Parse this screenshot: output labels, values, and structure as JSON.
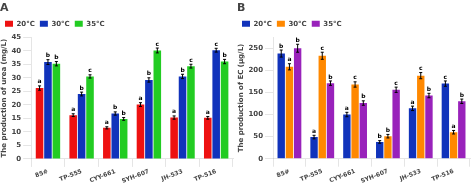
{
  "chart_data": [
    {
      "type": "bar",
      "title": "A",
      "ylabel": "The production of urea (mg/L)",
      "categories": [
        "85#",
        "TP-555",
        "CYY-661",
        "SYH-607",
        "JH-533",
        "TP-516"
      ],
      "series": [
        {
          "name": "20°C",
          "color": "#ee1111",
          "values": [
            26.2,
            16.2,
            11.5,
            20.1,
            15.3,
            15.2
          ],
          "errors": [
            0.8,
            0.5,
            0.4,
            0.7,
            0.6,
            0.5
          ],
          "annotations": [
            "a",
            "a",
            "a",
            "a",
            "a",
            "a"
          ]
        },
        {
          "name": "30°C",
          "color": "#1133bb",
          "values": [
            35.8,
            24.0,
            16.8,
            29.2,
            30.5,
            40.2
          ],
          "errors": [
            0.9,
            0.7,
            0.6,
            0.8,
            0.8,
            0.7
          ],
          "annotations": [
            "b",
            "b",
            "b",
            "b",
            "b",
            "c"
          ]
        },
        {
          "name": "35°C",
          "color": "#22cc22",
          "values": [
            35.2,
            30.5,
            14.8,
            40.1,
            34.3,
            36.0
          ],
          "errors": [
            0.8,
            0.6,
            0.5,
            0.9,
            0.7,
            0.8
          ],
          "annotations": [
            "b",
            "c",
            "b",
            "c",
            "c",
            "b"
          ]
        }
      ],
      "ylim": [
        0,
        45
      ],
      "yticks": [
        0,
        5,
        10,
        15,
        20,
        25,
        30,
        35,
        40,
        45
      ],
      "grid": false,
      "legend": "upper left"
    },
    {
      "type": "bar",
      "title": "B",
      "ylabel": "The production of EC (μg/L)",
      "categories": [
        "85#",
        "TP-555",
        "CYY-661",
        "SYH-607",
        "JH-533",
        "TP-516"
      ],
      "series": [
        {
          "name": "20°C",
          "color": "#1133bb",
          "values": [
            238,
            49,
            100,
            38,
            114,
            170
          ],
          "errors": [
            8,
            4,
            5,
            3,
            5,
            6
          ],
          "annotations": [
            "b",
            "a",
            "a",
            "b",
            "a",
            "c"
          ]
        },
        {
          "name": "30°C",
          "color": "#ff8800",
          "values": [
            208,
            233,
            168,
            51,
            188,
            60
          ],
          "errors": [
            7,
            8,
            6,
            4,
            7,
            4
          ],
          "annotations": [
            "a",
            "c",
            "c",
            "b",
            "c",
            "a"
          ]
        },
        {
          "name": "35°C",
          "color": "#9922bb",
          "values": [
            250,
            171,
            126,
            156,
            143,
            130
          ],
          "errors": [
            9,
            5,
            5,
            6,
            5,
            5
          ],
          "annotations": [
            "b",
            "b",
            "b",
            "c",
            "b",
            "b"
          ]
        }
      ],
      "ylim": [
        0,
        275
      ],
      "yticks": [
        0,
        50,
        100,
        150,
        200,
        250
      ],
      "grid": false,
      "legend": "upper left"
    }
  ]
}
